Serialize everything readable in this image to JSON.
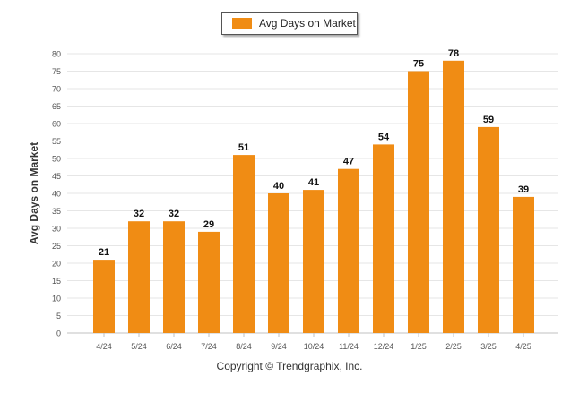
{
  "colors": {
    "bar": "#f08c14",
    "grid": "#e6e6e6",
    "axis": "#c0c0c0",
    "tick_text": "#555555",
    "label_text": "#111111"
  },
  "legend": {
    "label": "Avg Days on Market"
  },
  "credit": "Copyright © Trendgraphix, Inc.",
  "chart_data": {
    "type": "bar",
    "title": "",
    "xlabel": "",
    "ylabel": "Avg Days on Market",
    "categories": [
      "4/24",
      "5/24",
      "6/24",
      "7/24",
      "8/24",
      "9/24",
      "10/24",
      "11/24",
      "12/24",
      "1/25",
      "2/25",
      "3/25",
      "4/25"
    ],
    "series": [
      {
        "name": "Avg Days on Market",
        "values": [
          21,
          32,
          32,
          29,
          51,
          40,
          41,
          47,
          54,
          75,
          78,
          59,
          39
        ]
      }
    ],
    "ylim": [
      0,
      80
    ],
    "yticks": [
      0,
      5,
      10,
      15,
      20,
      25,
      30,
      35,
      40,
      45,
      50,
      55,
      60,
      65,
      70,
      75,
      80
    ],
    "grid": true,
    "data_labels": true,
    "legend_position": "top-center"
  }
}
